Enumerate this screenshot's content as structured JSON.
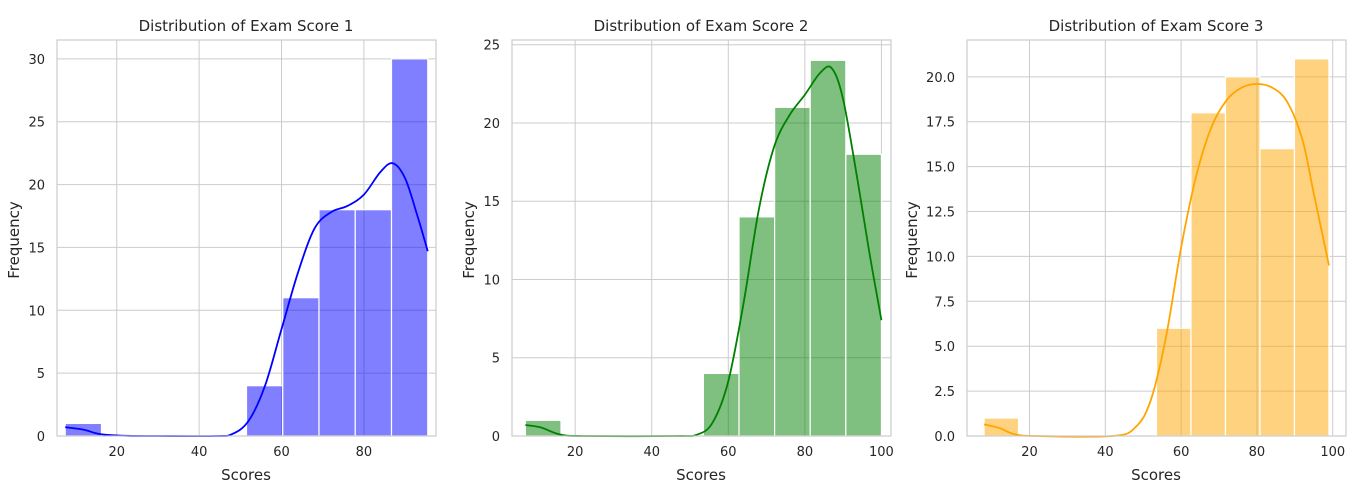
{
  "chart_data": [
    {
      "type": "bar",
      "title": "Distribution of Exam Score 1",
      "xlabel": "Scores",
      "ylabel": "Frequency",
      "xlim": [
        5.5,
        97.5
      ],
      "ylim": [
        0,
        31.5
      ],
      "xticks": [
        20,
        40,
        60,
        80
      ],
      "yticks": [
        0,
        5,
        10,
        15,
        20,
        25,
        30
      ],
      "bin_edges": [
        7.5,
        16.3,
        25.1,
        33.9,
        42.7,
        51.5,
        60.3,
        69.1,
        77.9,
        86.7,
        95.5
      ],
      "values": [
        1,
        0,
        0,
        0,
        0,
        4,
        11,
        18,
        18,
        30
      ],
      "color": "#0000ff",
      "kde": [
        [
          7.5,
          0.7
        ],
        [
          12,
          0.5
        ],
        [
          16,
          0.15
        ],
        [
          22,
          0.02
        ],
        [
          30,
          0
        ],
        [
          44,
          0
        ],
        [
          48,
          0.15
        ],
        [
          52,
          1.2
        ],
        [
          56,
          4
        ],
        [
          60,
          8.5
        ],
        [
          64,
          13
        ],
        [
          68,
          16.5
        ],
        [
          72,
          17.8
        ],
        [
          76,
          18.3
        ],
        [
          80,
          19.2
        ],
        [
          84,
          21
        ],
        [
          87,
          21.7
        ],
        [
          90,
          20.5
        ],
        [
          93,
          17.5
        ],
        [
          95.5,
          14.7
        ]
      ]
    },
    {
      "type": "bar",
      "title": "Distribution of Exam Score 2",
      "xlabel": "Scores",
      "ylabel": "Frequency",
      "xlim": [
        3.5,
        102.5
      ],
      "ylim": [
        0,
        25.3
      ],
      "xticks": [
        20,
        40,
        60,
        80,
        100
      ],
      "yticks": [
        0,
        5,
        10,
        15,
        20,
        25
      ],
      "bin_edges": [
        7,
        16.3,
        25.6,
        34.9,
        44.2,
        53.5,
        62.8,
        72.1,
        81.4,
        90.7,
        100
      ],
      "values": [
        1,
        0,
        0,
        0,
        0,
        4,
        14,
        21,
        24,
        18
      ],
      "color": "#008000",
      "kde": [
        [
          7,
          0.7
        ],
        [
          11,
          0.55
        ],
        [
          16,
          0.1
        ],
        [
          22,
          0
        ],
        [
          46,
          0
        ],
        [
          52,
          0.1
        ],
        [
          56,
          0.9
        ],
        [
          60,
          3.5
        ],
        [
          64,
          8.5
        ],
        [
          68,
          14.5
        ],
        [
          72,
          18.5
        ],
        [
          76,
          20.5
        ],
        [
          80,
          21.8
        ],
        [
          84,
          23.2
        ],
        [
          87,
          23.5
        ],
        [
          90,
          21.5
        ],
        [
          94,
          16
        ],
        [
          97,
          11.5
        ],
        [
          100,
          7.4
        ]
      ]
    },
    {
      "type": "bar",
      "title": "Distribution of Exam Score 3",
      "xlabel": "Scores",
      "ylabel": "Frequency",
      "xlim": [
        3.5,
        103.5
      ],
      "ylim": [
        0,
        22.05
      ],
      "xticks": [
        20,
        40,
        60,
        80,
        100
      ],
      "yticks": [
        0.0,
        2.5,
        5.0,
        7.5,
        10.0,
        12.5,
        15.0,
        17.5,
        20.0
      ],
      "ytick_labels": [
        "0.0",
        "2.5",
        "5.0",
        "7.5",
        "10.0",
        "12.5",
        "15.0",
        "17.5",
        "20.0"
      ],
      "bin_edges": [
        8,
        17.1,
        26.2,
        35.3,
        44.4,
        53.5,
        62.6,
        71.7,
        80.8,
        89.9,
        99
      ],
      "values": [
        1,
        0,
        0,
        0,
        0,
        6,
        18,
        20,
        16,
        21
      ],
      "color": "#ffa500",
      "kde": [
        [
          8,
          0.65
        ],
        [
          12,
          0.45
        ],
        [
          16,
          0.1
        ],
        [
          22,
          0
        ],
        [
          42,
          0
        ],
        [
          48,
          0.5
        ],
        [
          52,
          2
        ],
        [
          56,
          5.5
        ],
        [
          60,
          10.5
        ],
        [
          64,
          14.5
        ],
        [
          68,
          17.2
        ],
        [
          72,
          18.7
        ],
        [
          76,
          19.4
        ],
        [
          80,
          19.6
        ],
        [
          84,
          19.4
        ],
        [
          88,
          18.6
        ],
        [
          92,
          16.5
        ],
        [
          95,
          13.5
        ],
        [
          99,
          9.5
        ]
      ]
    }
  ]
}
